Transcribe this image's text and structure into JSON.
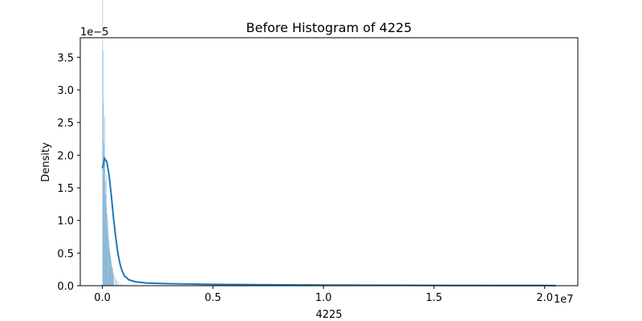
{
  "chart_data": {
    "type": "histogram",
    "title": "Before Histogram of 4225",
    "xlabel": "4225",
    "ylabel": "Density",
    "x_scale_label": "1e7",
    "y_scale_label": "1e−5",
    "xlim": [
      -0.1,
      2.15
    ],
    "ylim": [
      0,
      3.8
    ],
    "x_ticks": [
      0.0,
      0.5,
      1.0,
      1.5,
      2.0
    ],
    "x_tick_labels": [
      "0.0",
      "0.5",
      "1.0",
      "1.5",
      "2.0"
    ],
    "y_ticks": [
      0.0,
      0.5,
      1.0,
      1.5,
      2.0,
      2.5,
      3.0,
      3.5
    ],
    "y_tick_labels": [
      "0.0",
      "0.5",
      "1.0",
      "1.5",
      "2.0",
      "2.5",
      "3.0",
      "3.5"
    ],
    "grid": false,
    "bar_color": "#1f77b4",
    "kde_color": "#1f77b4",
    "bins": [
      {
        "x": 0.0,
        "density": 5.8
      },
      {
        "x": 0.002,
        "density": 3.6
      },
      {
        "x": 0.004,
        "density": 2.8
      },
      {
        "x": 0.006,
        "density": 2.2
      },
      {
        "x": 0.008,
        "density": 1.9
      },
      {
        "x": 0.01,
        "density": 2.6
      },
      {
        "x": 0.012,
        "density": 1.6
      },
      {
        "x": 0.014,
        "density": 1.4
      },
      {
        "x": 0.016,
        "density": 1.7
      },
      {
        "x": 0.018,
        "density": 1.2
      },
      {
        "x": 0.02,
        "density": 1.1
      },
      {
        "x": 0.022,
        "density": 0.9
      },
      {
        "x": 0.024,
        "density": 1.0
      },
      {
        "x": 0.026,
        "density": 0.8
      },
      {
        "x": 0.028,
        "density": 0.7
      },
      {
        "x": 0.03,
        "density": 0.6
      },
      {
        "x": 0.032,
        "density": 0.55
      },
      {
        "x": 0.034,
        "density": 0.5
      },
      {
        "x": 0.036,
        "density": 0.45
      },
      {
        "x": 0.038,
        "density": 0.4
      },
      {
        "x": 0.04,
        "density": 0.35
      },
      {
        "x": 0.042,
        "density": 0.3
      },
      {
        "x": 0.044,
        "density": 0.28
      },
      {
        "x": 0.046,
        "density": 0.25
      },
      {
        "x": 0.048,
        "density": 0.2
      },
      {
        "x": 0.05,
        "density": 0.18
      },
      {
        "x": 0.055,
        "density": 0.14
      },
      {
        "x": 0.06,
        "density": 0.1
      },
      {
        "x": 0.065,
        "density": 0.08
      },
      {
        "x": 0.07,
        "density": 0.06
      },
      {
        "x": 0.08,
        "density": 0.04
      },
      {
        "x": 0.09,
        "density": 0.03
      }
    ],
    "kde": [
      [
        0.0,
        1.8
      ],
      [
        0.01,
        1.95
      ],
      [
        0.02,
        1.9
      ],
      [
        0.03,
        1.7
      ],
      [
        0.04,
        1.4
      ],
      [
        0.05,
        1.05
      ],
      [
        0.06,
        0.75
      ],
      [
        0.07,
        0.5
      ],
      [
        0.08,
        0.33
      ],
      [
        0.09,
        0.22
      ],
      [
        0.1,
        0.15
      ],
      [
        0.12,
        0.09
      ],
      [
        0.15,
        0.06
      ],
      [
        0.2,
        0.04
      ],
      [
        0.3,
        0.03
      ],
      [
        0.5,
        0.02
      ],
      [
        1.0,
        0.01
      ],
      [
        1.5,
        0.005
      ],
      [
        2.0,
        0.003
      ],
      [
        2.05,
        0.002
      ]
    ]
  }
}
